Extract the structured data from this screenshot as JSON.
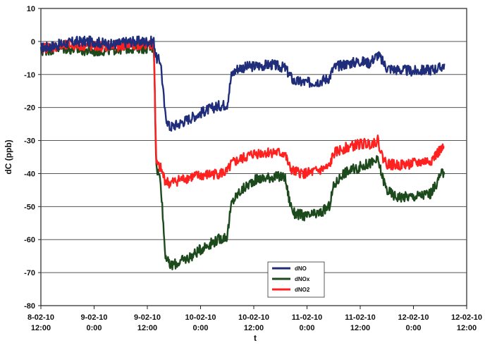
{
  "chart_data": {
    "type": "line",
    "title": "",
    "xlabel": "t",
    "ylabel": "dC (ppb)",
    "x_range_hours": [
      0,
      96
    ],
    "x_ticks": [
      {
        "hour": 0,
        "line1": "8-02-10",
        "line2": "12:00"
      },
      {
        "hour": 12,
        "line1": "9-02-10",
        "line2": "0:00"
      },
      {
        "hour": 24,
        "line1": "9-02-10",
        "line2": "12:00"
      },
      {
        "hour": 36,
        "line1": "10-02-10",
        "line2": "0:00"
      },
      {
        "hour": 48,
        "line1": "10-02-10",
        "line2": "12:00"
      },
      {
        "hour": 60,
        "line1": "11-02-10",
        "line2": "0:00"
      },
      {
        "hour": 72,
        "line1": "11-02-10",
        "line2": "12:00"
      },
      {
        "hour": 84,
        "line1": "12-02-10",
        "line2": "0:00"
      },
      {
        "hour": 96,
        "line1": "12-02-10",
        "line2": "12:00"
      }
    ],
    "y_range": [
      -80,
      10
    ],
    "y_ticks": [
      10,
      0,
      -10,
      -20,
      -30,
      -40,
      -50,
      -60,
      -70,
      -80
    ],
    "grid": "horizontal",
    "legend_position": "bottom-right",
    "series": [
      {
        "name": "dNO",
        "color": "#1f2d7a",
        "points": [
          [
            0,
            -2
          ],
          [
            4,
            -1
          ],
          [
            8,
            0
          ],
          [
            12,
            0
          ],
          [
            16,
            -1
          ],
          [
            20,
            0
          ],
          [
            24,
            0
          ],
          [
            25.5,
            0
          ],
          [
            26,
            -5
          ],
          [
            27,
            -6
          ],
          [
            28,
            -22
          ],
          [
            29,
            -26
          ],
          [
            31,
            -25
          ],
          [
            34,
            -23
          ],
          [
            37,
            -21
          ],
          [
            40,
            -19.5
          ],
          [
            42,
            -19
          ],
          [
            43,
            -10
          ],
          [
            44.5,
            -8
          ],
          [
            48,
            -7.5
          ],
          [
            52,
            -7
          ],
          [
            55,
            -8
          ],
          [
            56,
            -10
          ],
          [
            57,
            -12
          ],
          [
            60,
            -12.5
          ],
          [
            63,
            -12
          ],
          [
            65,
            -11
          ],
          [
            66,
            -8
          ],
          [
            68,
            -7
          ],
          [
            72,
            -6
          ],
          [
            74,
            -6.5
          ],
          [
            76,
            -4
          ],
          [
            77,
            -6
          ],
          [
            78,
            -8
          ],
          [
            80,
            -8.5
          ],
          [
            84,
            -9
          ],
          [
            88,
            -8.5
          ],
          [
            90,
            -8
          ],
          [
            91,
            -7
          ]
        ]
      },
      {
        "name": "dNOx",
        "color": "#1c4a1c",
        "points": [
          [
            0,
            -3
          ],
          [
            4,
            -2
          ],
          [
            8,
            -2.5
          ],
          [
            12,
            -3
          ],
          [
            16,
            -2.5
          ],
          [
            20,
            -2
          ],
          [
            24,
            -2
          ],
          [
            25.5,
            -2
          ],
          [
            26,
            -38
          ],
          [
            27,
            -42
          ],
          [
            28,
            -64
          ],
          [
            29,
            -68
          ],
          [
            31,
            -67
          ],
          [
            34,
            -65
          ],
          [
            37,
            -62
          ],
          [
            40,
            -60
          ],
          [
            42,
            -59
          ],
          [
            43,
            -49
          ],
          [
            44.5,
            -46
          ],
          [
            48,
            -42
          ],
          [
            52,
            -41
          ],
          [
            55,
            -41
          ],
          [
            56,
            -48
          ],
          [
            57,
            -52
          ],
          [
            60,
            -53
          ],
          [
            63,
            -52
          ],
          [
            65,
            -50
          ],
          [
            66,
            -44
          ],
          [
            68,
            -40
          ],
          [
            72,
            -38
          ],
          [
            74,
            -37
          ],
          [
            76,
            -36
          ],
          [
            77,
            -41
          ],
          [
            78,
            -45
          ],
          [
            80,
            -47
          ],
          [
            84,
            -47
          ],
          [
            88,
            -46
          ],
          [
            90,
            -41
          ],
          [
            91,
            -39
          ]
        ]
      },
      {
        "name": "dNO2",
        "color": "#ff2020",
        "points": [
          [
            0,
            -2
          ],
          [
            4,
            -1.5
          ],
          [
            8,
            -1
          ],
          [
            12,
            -1.5
          ],
          [
            16,
            -1.5
          ],
          [
            20,
            -1
          ],
          [
            24,
            -1
          ],
          [
            25.5,
            -1
          ],
          [
            26,
            -37
          ],
          [
            27,
            -38.5
          ],
          [
            28,
            -42
          ],
          [
            29,
            -43
          ],
          [
            31,
            -42
          ],
          [
            34,
            -41
          ],
          [
            37,
            -40.5
          ],
          [
            40,
            -40
          ],
          [
            42,
            -39.5
          ],
          [
            43,
            -37
          ],
          [
            44.5,
            -36
          ],
          [
            48,
            -34
          ],
          [
            52,
            -33.5
          ],
          [
            55,
            -34
          ],
          [
            56,
            -38
          ],
          [
            57,
            -39.5
          ],
          [
            60,
            -40
          ],
          [
            63,
            -39
          ],
          [
            65,
            -38
          ],
          [
            66,
            -34
          ],
          [
            68,
            -32.5
          ],
          [
            72,
            -31
          ],
          [
            74,
            -31
          ],
          [
            76,
            -30
          ],
          [
            77,
            -35
          ],
          [
            78,
            -37
          ],
          [
            80,
            -37.5
          ],
          [
            84,
            -37
          ],
          [
            88,
            -36
          ],
          [
            90,
            -33
          ],
          [
            91,
            -32.5
          ]
        ]
      }
    ]
  }
}
